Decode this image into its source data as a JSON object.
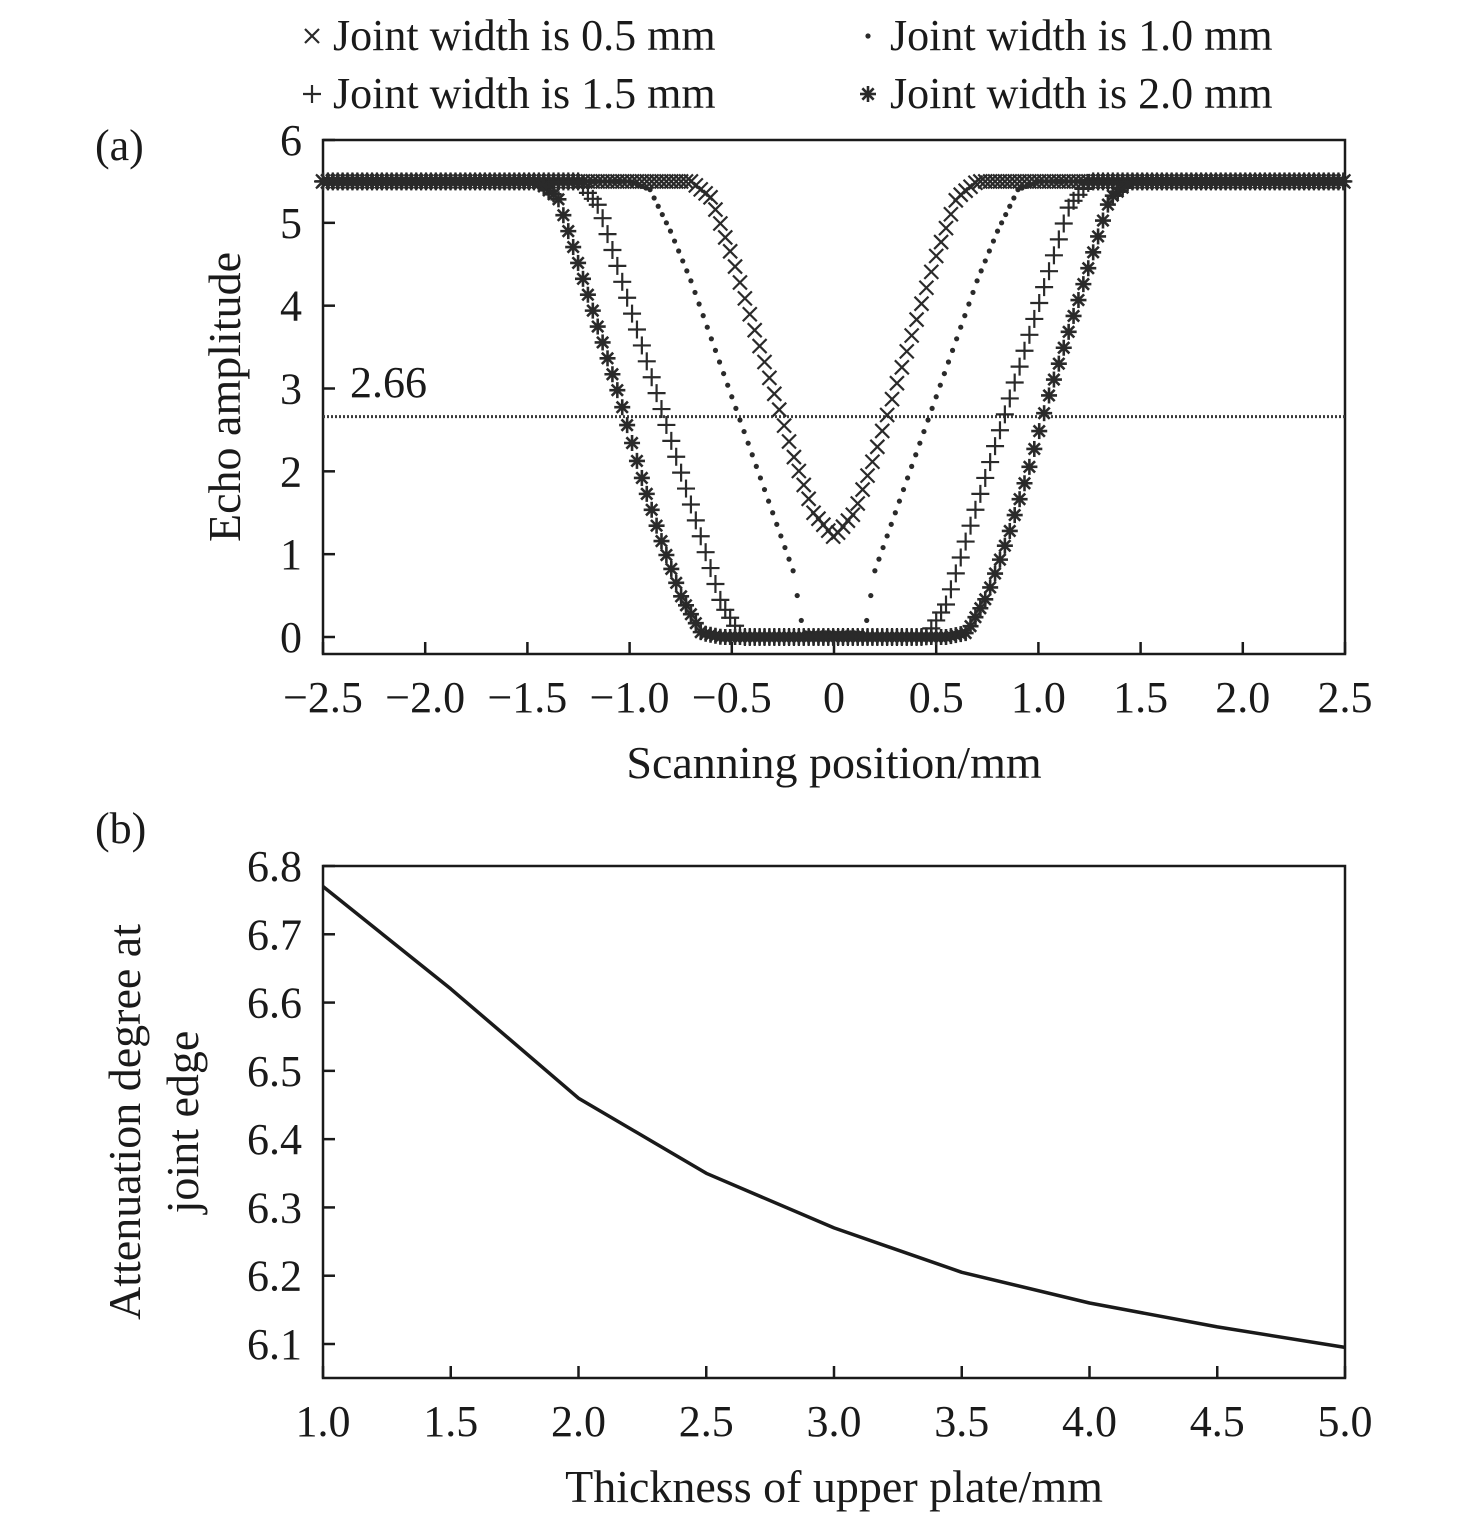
{
  "legend": [
    {
      "marker": "x",
      "label": "Joint width is 0.5 mm"
    },
    {
      "marker": "dot",
      "label": "Joint width is 1.0 mm"
    },
    {
      "marker": "plus",
      "label": "Joint width is 1.5 mm"
    },
    {
      "marker": "star",
      "label": "Joint width is 2.0 mm"
    }
  ],
  "chart_data": [
    {
      "panel": "(a)",
      "type": "scatter",
      "xlabel": "Scanning position/mm",
      "ylabel": "Echo amplitude",
      "xlim": [
        -2.5,
        2.5
      ],
      "ylim": [
        -0.2,
        6
      ],
      "xticks": [
        -2.5,
        -2.0,
        -1.5,
        -1.0,
        -0.5,
        0,
        0.5,
        1.0,
        1.5,
        2.0,
        2.5
      ],
      "xtick_labels": [
        "−2.5",
        "−2.0",
        "−1.5",
        "−1.0",
        "−0.5",
        "0",
        "0.5",
        "1.0",
        "1.5",
        "2.0",
        "2.5"
      ],
      "yticks": [
        0,
        1,
        2,
        3,
        4,
        5,
        6
      ],
      "ytick_labels": [
        "0",
        "1",
        "2",
        "3",
        "4",
        "5",
        "6"
      ],
      "threshold": {
        "value": 2.66,
        "label": "2.66"
      },
      "series": [
        {
          "name": "Joint width is 0.5 mm",
          "marker": "x",
          "x": [
            -2.5,
            -0.7,
            -0.6,
            -0.5,
            -0.4,
            -0.3,
            -0.2,
            -0.1,
            0.0,
            0.1,
            0.2,
            0.3,
            0.4,
            0.5,
            0.6,
            0.7,
            2.5
          ],
          "y": [
            5.5,
            5.5,
            5.3,
            4.6,
            3.8,
            3.0,
            2.2,
            1.5,
            1.2,
            1.5,
            2.2,
            3.0,
            3.8,
            4.6,
            5.3,
            5.5,
            5.5
          ]
        },
        {
          "name": "Joint width is 1.0 mm",
          "marker": "dot",
          "x": [
            -2.5,
            -1.0,
            -0.9,
            -0.8,
            -0.7,
            -0.6,
            -0.5,
            -0.4,
            -0.3,
            -0.2,
            -0.15,
            0.15,
            0.2,
            0.3,
            0.4,
            0.5,
            0.6,
            0.7,
            0.8,
            0.9,
            1.0,
            2.5
          ],
          "y": [
            5.5,
            5.5,
            5.4,
            4.9,
            4.3,
            3.6,
            2.9,
            2.2,
            1.5,
            0.8,
            0.05,
            0.05,
            0.8,
            1.5,
            2.2,
            2.9,
            3.6,
            4.3,
            4.9,
            5.4,
            5.5,
            5.5
          ]
        },
        {
          "name": "Joint width is 1.5 mm",
          "marker": "plus",
          "x": [
            -2.5,
            -1.25,
            -1.15,
            -1.05,
            -0.95,
            -0.85,
            -0.75,
            -0.65,
            -0.55,
            -0.45,
            0.45,
            0.55,
            0.65,
            0.75,
            0.85,
            0.95,
            1.05,
            1.15,
            1.25,
            2.5
          ],
          "y": [
            5.5,
            5.5,
            5.2,
            4.4,
            3.6,
            2.8,
            2.0,
            1.2,
            0.4,
            0.0,
            0.0,
            0.4,
            1.2,
            2.0,
            2.8,
            3.6,
            4.4,
            5.2,
            5.5,
            5.5
          ]
        },
        {
          "name": "Joint width is 2.0 mm",
          "marker": "star",
          "x": [
            -2.5,
            -1.45,
            -1.35,
            -1.25,
            -1.15,
            -1.05,
            -0.95,
            -0.85,
            -0.75,
            -0.65,
            -0.55,
            0.55,
            0.65,
            0.75,
            0.85,
            0.95,
            1.05,
            1.15,
            1.25,
            1.35,
            1.45,
            2.5
          ],
          "y": [
            5.5,
            5.5,
            5.3,
            4.5,
            3.7,
            2.9,
            2.0,
            1.2,
            0.5,
            0.05,
            0.0,
            0.0,
            0.05,
            0.5,
            1.2,
            2.0,
            2.9,
            3.7,
            4.5,
            5.3,
            5.5,
            5.5
          ]
        }
      ]
    },
    {
      "panel": "(b)",
      "type": "line",
      "xlabel": "Thickness of upper plate/mm",
      "ylabel": "Attenuation degree at joint edge",
      "ylabel_lines": [
        "Attenuation degree at",
        "joint edge"
      ],
      "xlim": [
        1.0,
        5.0
      ],
      "ylim": [
        6.05,
        6.8
      ],
      "xticks": [
        1.0,
        1.5,
        2.0,
        2.5,
        3.0,
        3.5,
        4.0,
        4.5,
        5.0
      ],
      "xtick_labels": [
        "1.0",
        "1.5",
        "2.0",
        "2.5",
        "3.0",
        "3.5",
        "4.0",
        "4.5",
        "5.0"
      ],
      "yticks": [
        6.1,
        6.2,
        6.3,
        6.4,
        6.5,
        6.6,
        6.7,
        6.8
      ],
      "ytick_labels": [
        "6.1",
        "6.2",
        "6.3",
        "6.4",
        "6.5",
        "6.6",
        "6.7",
        "6.8"
      ],
      "x": [
        1.0,
        1.5,
        2.0,
        2.5,
        3.0,
        3.5,
        4.0,
        4.5,
        5.0
      ],
      "y": [
        6.77,
        6.62,
        6.46,
        6.35,
        6.27,
        6.205,
        6.16,
        6.125,
        6.095
      ]
    }
  ]
}
